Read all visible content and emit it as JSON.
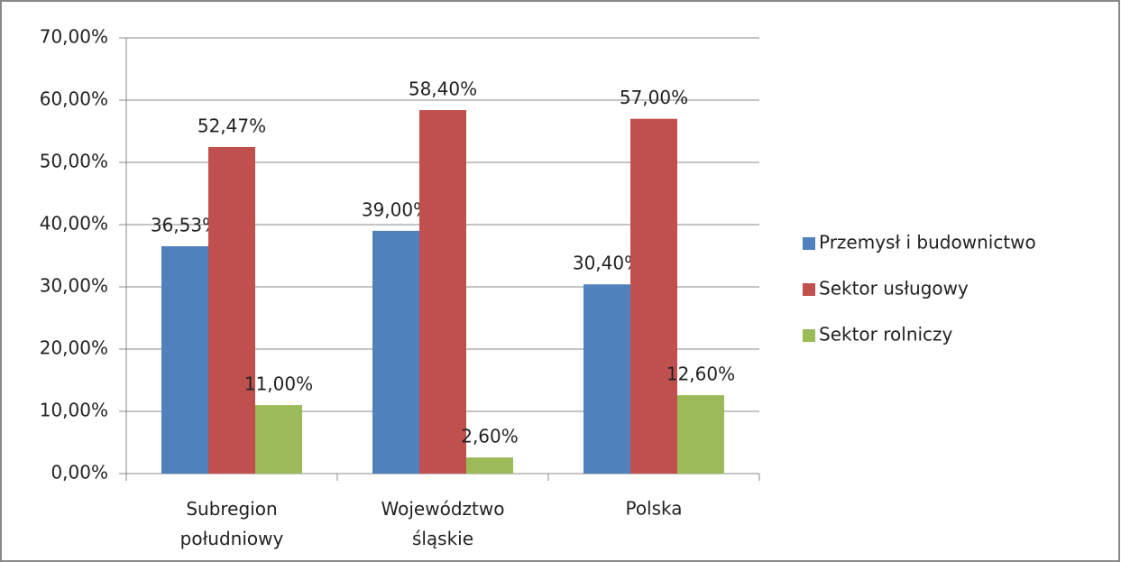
{
  "chart_data": {
    "type": "bar",
    "categories": [
      "Subregion południowy",
      "Województwo śląskie",
      "Polska"
    ],
    "series": [
      {
        "name": "Przemysł i budownictwo",
        "color": "#4f81bd",
        "values": [
          36.53,
          39.0,
          30.4
        ],
        "value_labels": [
          "36,53%",
          "39,00%",
          "30,40%"
        ]
      },
      {
        "name": "Sektor usługowy",
        "color": "#c0504d",
        "values": [
          52.47,
          58.4,
          57.0
        ],
        "value_labels": [
          "52,47%",
          "58,40%",
          "57,00%"
        ]
      },
      {
        "name": "Sektor rolniczy",
        "color": "#9bbb59",
        "values": [
          11.0,
          2.6,
          12.6
        ],
        "value_labels": [
          "11,00%",
          "2,60%",
          "12,60%"
        ]
      }
    ],
    "ylim": [
      0,
      70
    ],
    "yticks": [
      {
        "value": 0,
        "label": "0,00%"
      },
      {
        "value": 10,
        "label": "10,00%"
      },
      {
        "value": 20,
        "label": "20,00%"
      },
      {
        "value": 30,
        "label": "30,00%"
      },
      {
        "value": 40,
        "label": "40,00%"
      },
      {
        "value": 50,
        "label": "50,00%"
      },
      {
        "value": 60,
        "label": "60,00%"
      },
      {
        "value": 70,
        "label": "70,00%"
      }
    ],
    "grid": true,
    "legend": "right"
  }
}
